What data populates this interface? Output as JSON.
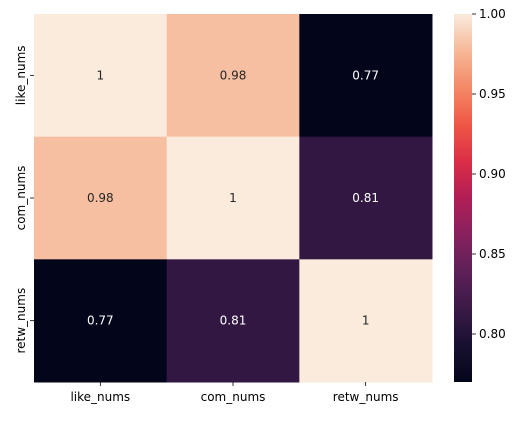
{
  "chart_data": {
    "type": "heatmap",
    "title": "",
    "xlabel": "",
    "ylabel": "",
    "x_categories": [
      "like_nums",
      "com_nums",
      "retw_nums"
    ],
    "y_categories": [
      "like_nums",
      "com_nums",
      "retw_nums"
    ],
    "values": [
      [
        1,
        0.98,
        0.77
      ],
      [
        0.98,
        1,
        0.81
      ],
      [
        0.77,
        0.81,
        1
      ]
    ],
    "annotations": [
      [
        "1",
        "0.98",
        "0.77"
      ],
      [
        "0.98",
        "1",
        "0.81"
      ],
      [
        "0.77",
        "0.81",
        "1"
      ]
    ],
    "colorbar": {
      "min": 0.77,
      "max": 1.0,
      "ticks": [
        0.8,
        0.85,
        0.9,
        0.95,
        1.0
      ],
      "tick_labels": [
        "0.80",
        "0.85",
        "0.90",
        "0.95",
        "1.00"
      ],
      "colormap": "rocket"
    },
    "grid": false
  }
}
